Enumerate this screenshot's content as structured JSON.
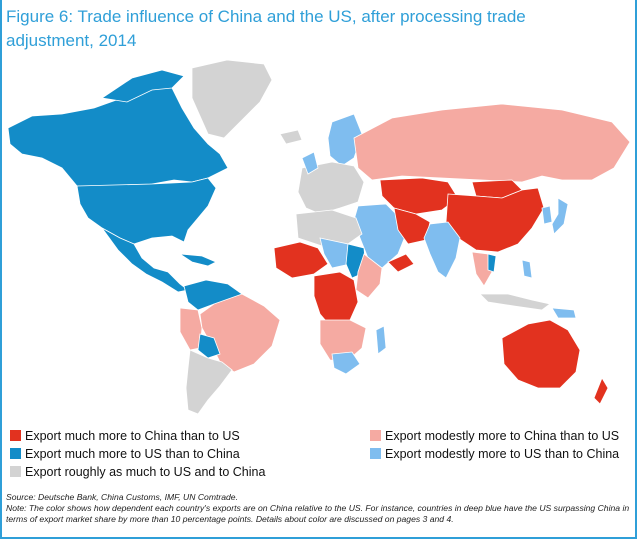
{
  "title": {
    "line1": "Figure 6: Trade influence of China and the US, after processing trade",
    "line2": "adjustment, 2014"
  },
  "colors": {
    "much_china": "#e2321f",
    "modest_china": "#f5aaa2",
    "roughly_equal": "#d3d3d3",
    "much_us": "#138cc8",
    "modest_us": "#7fbdef",
    "ocean": "#ffffff",
    "title": "#2f9fd8"
  },
  "legend": [
    {
      "label": "Export much more to China than to US",
      "color": "#e2321f"
    },
    {
      "label": "Export much more to US than to China",
      "color": "#138cc8"
    },
    {
      "label": "Export roughly as much to US and to China",
      "color": "#d3d3d3"
    },
    {
      "label": "Export modestly more to China than to US",
      "color": "#f5aaa2"
    },
    {
      "label": "Export modestly more to US than to China",
      "color": "#7fbdef"
    }
  ],
  "source": "Source: Deutsche Bank, China Customs, IMF, UN Comtrade.",
  "note": "Note: The color shows how dependent each country's exports are on China relative to the US. For instance, countries in deep blue have the US surpassing China in terms of export market share by more than 10 percentage points. Details about color are discussed on pages 3 and 4."
}
